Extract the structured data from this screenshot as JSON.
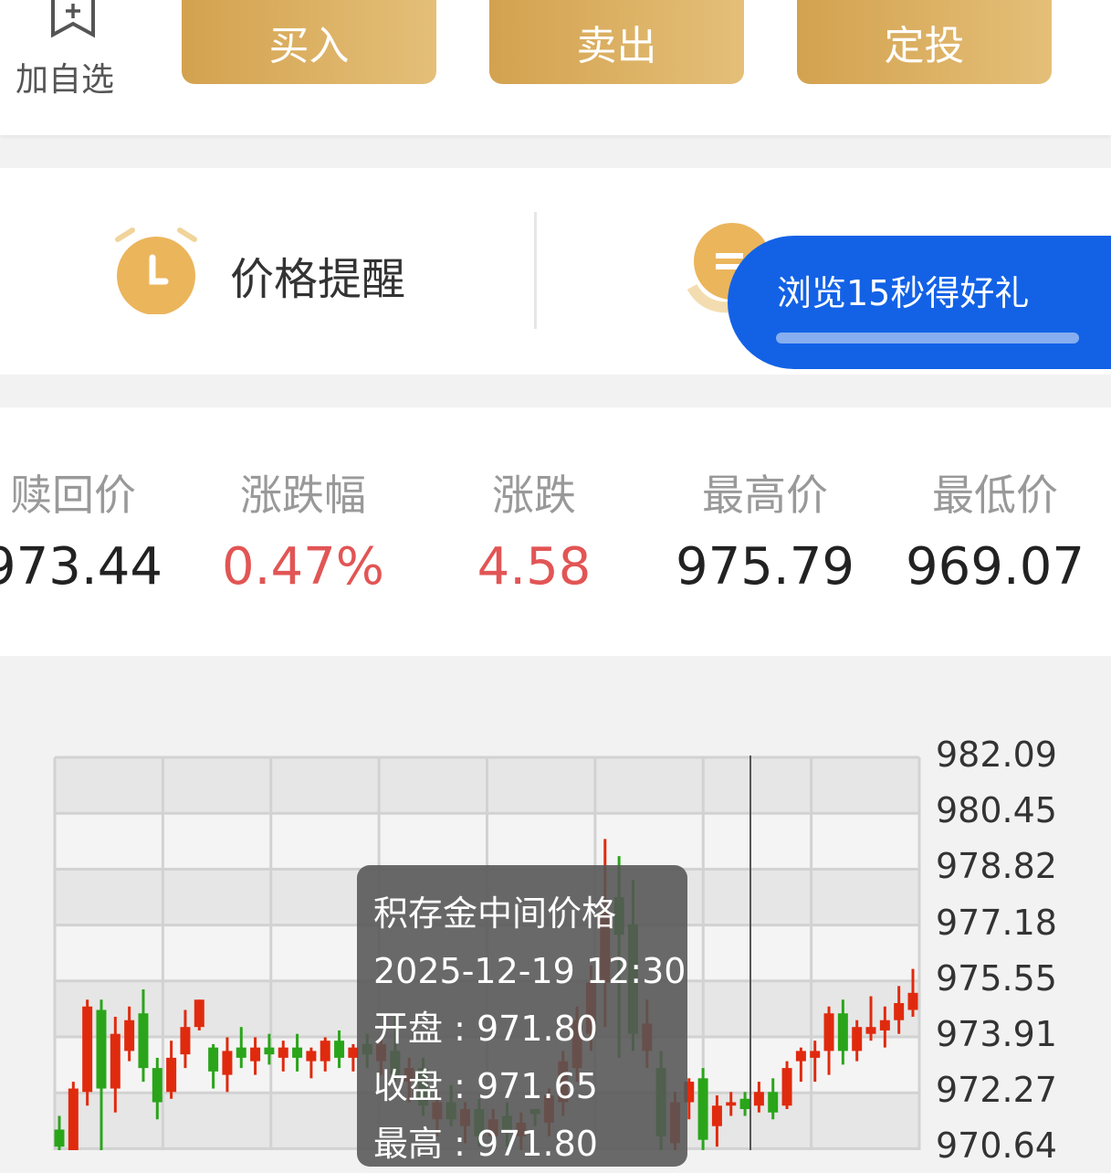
{
  "top_bar": {
    "favorite_label": "加自选",
    "buttons": [
      "买入",
      "卖出",
      "定投"
    ]
  },
  "tools": {
    "price_alert_label": "价格提醒",
    "promo": {
      "label": "浏览15秒得好礼",
      "progress_percent": 100
    }
  },
  "stats": [
    {
      "label": "赎回价",
      "value": "973.44"
    },
    {
      "label": "涨跌幅",
      "value": "0.47%",
      "color": "#e25555"
    },
    {
      "label": "涨跌",
      "value": "4.58",
      "color": "#e25555"
    },
    {
      "label": "最高价",
      "value": "975.79"
    },
    {
      "label": "最低价",
      "value": "969.07"
    }
  ],
  "chart": {
    "type": "candlestick",
    "y_ticks": [
      "982.09",
      "980.45",
      "978.82",
      "977.18",
      "975.55",
      "973.91",
      "972.27",
      "970.64"
    ],
    "ylim": [
      970.64,
      982.09
    ],
    "up_color": "#e02a0e",
    "down_color": "#2aa51a",
    "tooltip": {
      "title": "积存金中间价格",
      "time": "2025-12-19 12:30",
      "open": "开盘 : 971.80",
      "close": "收盘 : 971.65",
      "high": "最高 : 971.80"
    },
    "candles": [
      [
        971.2,
        971.6,
        970.5,
        970.7
      ],
      [
        970.5,
        972.6,
        970.4,
        972.4
      ],
      [
        972.3,
        975.0,
        971.9,
        974.8
      ],
      [
        974.7,
        975.0,
        970.5,
        972.4
      ],
      [
        972.4,
        974.5,
        971.7,
        974.0
      ],
      [
        973.5,
        974.8,
        973.2,
        974.4
      ],
      [
        974.6,
        975.3,
        972.6,
        973.0
      ],
      [
        973.0,
        973.3,
        971.5,
        972.0
      ],
      [
        972.3,
        973.8,
        972.1,
        973.3
      ],
      [
        973.4,
        974.7,
        973.0,
        974.2
      ],
      [
        974.2,
        975.0,
        974.1,
        975.0
      ],
      [
        973.6,
        973.7,
        972.4,
        972.9
      ],
      [
        972.8,
        973.9,
        972.3,
        973.5
      ],
      [
        973.6,
        974.2,
        973.0,
        973.3
      ],
      [
        973.2,
        973.9,
        972.8,
        973.6
      ],
      [
        973.6,
        974.0,
        973.1,
        973.4
      ],
      [
        973.3,
        973.8,
        972.9,
        973.6
      ],
      [
        973.6,
        974.0,
        972.9,
        973.3
      ],
      [
        973.2,
        973.6,
        972.7,
        973.5
      ],
      [
        973.2,
        973.9,
        972.9,
        973.8
      ],
      [
        973.8,
        974.1,
        973.0,
        973.3
      ],
      [
        973.3,
        973.7,
        972.9,
        973.6
      ],
      [
        973.7,
        974.0,
        973.0,
        973.4
      ],
      [
        973.2,
        973.9,
        972.8,
        973.7
      ],
      [
        973.5,
        974.5,
        972.6,
        972.8
      ],
      [
        972.6,
        973.3,
        972.0,
        973.0
      ],
      [
        973.0,
        973.3,
        971.6,
        971.9
      ],
      [
        971.5,
        972.3,
        971.0,
        972.0
      ],
      [
        972.0,
        972.5,
        971.3,
        971.5
      ],
      [
        971.3,
        972.0,
        970.8,
        971.8
      ],
      [
        971.8,
        972.1,
        970.7,
        971.0
      ],
      [
        971.0,
        971.8,
        970.6,
        971.5
      ],
      [
        971.6,
        972.0,
        970.7,
        971.1
      ],
      [
        971.0,
        971.7,
        970.6,
        971.4
      ],
      [
        971.8,
        971.8,
        971.3,
        971.65
      ],
      [
        971.4,
        972.4,
        971.0,
        972.2
      ],
      [
        972.0,
        973.5,
        971.6,
        973.2
      ],
      [
        973.0,
        974.8,
        972.6,
        974.4
      ],
      [
        974.0,
        976.0,
        973.5,
        975.5
      ],
      [
        975.5,
        979.7,
        974.2,
        977.6
      ],
      [
        978.0,
        979.2,
        973.3,
        976.9
      ],
      [
        977.2,
        978.5,
        973.5,
        974.0
      ],
      [
        973.5,
        975.0,
        973.0,
        974.3
      ],
      [
        973.0,
        973.5,
        970.6,
        971.0
      ],
      [
        970.8,
        972.3,
        970.5,
        972.0
      ],
      [
        972.0,
        972.7,
        971.5,
        972.6
      ],
      [
        972.7,
        973.0,
        970.6,
        970.9
      ],
      [
        971.3,
        972.2,
        970.7,
        971.9
      ],
      [
        971.9,
        972.3,
        971.6,
        972.0
      ],
      [
        972.1,
        972.3,
        971.6,
        971.8
      ],
      [
        971.9,
        972.6,
        971.7,
        972.3
      ],
      [
        972.3,
        972.7,
        971.5,
        971.7
      ],
      [
        971.9,
        973.2,
        971.8,
        973.0
      ],
      [
        973.2,
        973.6,
        972.6,
        973.5
      ],
      [
        973.3,
        973.8,
        972.6,
        973.5
      ],
      [
        973.5,
        974.8,
        972.8,
        974.6
      ],
      [
        974.6,
        975.0,
        973.1,
        973.5
      ],
      [
        973.5,
        974.4,
        973.2,
        974.2
      ],
      [
        974.0,
        975.1,
        973.8,
        974.2
      ],
      [
        974.1,
        974.8,
        973.6,
        974.4
      ],
      [
        974.4,
        975.4,
        974.0,
        974.9
      ],
      [
        974.7,
        975.9,
        974.5,
        975.2
      ]
    ]
  }
}
